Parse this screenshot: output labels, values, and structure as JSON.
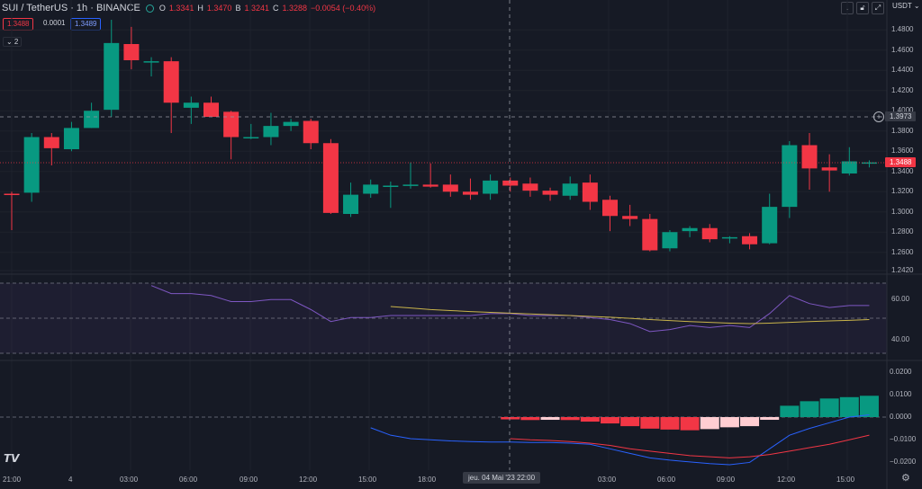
{
  "header": {
    "symbol": "SUI / TetherUS · 1h · BINANCE",
    "o_label": "O",
    "o_value": "1.3341",
    "h_label": "H",
    "h_value": "1.3470",
    "b_label": "B",
    "b_value": "1.3241",
    "c_label": "C",
    "c_value": "1.3288",
    "change": "−0.0054 (−0.40%)"
  },
  "toolbar": {
    "currency": "USDT",
    "icons": [
      "arrow-down-icon",
      "lock-icon",
      "expand-icon",
      "restore-icon"
    ]
  },
  "quotes": {
    "bid": "1.3488",
    "spread": "0.0001",
    "ask": "1.3489"
  },
  "indicators_collapsed": "⌄ 2",
  "price_axis": [
    "1.4800",
    "1.4600",
    "1.4400",
    "1.4200",
    "1.4000",
    "1.3800",
    "1.3600",
    "1.3400",
    "1.3200",
    "1.3000",
    "1.2800",
    "1.2600",
    "1.2420"
  ],
  "rsi_axis": [
    "60.00",
    "40.00"
  ],
  "macd_axis": [
    "0.0200",
    "0.0100",
    "0.0000",
    "−0.0100",
    "−0.0200"
  ],
  "time_axis": [
    "21:00",
    "4",
    "03:00",
    "06:00",
    "09:00",
    "12:00",
    "15:00",
    "18:00",
    "03:00",
    "06:00",
    "09:00",
    "12:00",
    "15:00"
  ],
  "crosshair": {
    "time": "jeu. 04 Mai '23   22:00",
    "price": "1.3973"
  },
  "last_price": "1.3488",
  "colors": {
    "up": "#089981",
    "down": "#f23645",
    "rsi": "#7e57c2",
    "rsi_ma": "#c9b44a",
    "macd": "#2962ff",
    "signal": "#f23645"
  },
  "chart_data": {
    "type": "candlestick",
    "ohlc": [
      [
        1.318,
        1.32,
        1.282,
        1.317
      ],
      [
        1.319,
        1.378,
        1.31,
        1.374
      ],
      [
        1.374,
        1.378,
        1.346,
        1.363
      ],
      [
        1.362,
        1.389,
        1.36,
        1.383
      ],
      [
        1.383,
        1.408,
        1.383,
        1.4
      ],
      [
        1.401,
        1.49,
        1.394,
        1.467
      ],
      [
        1.466,
        1.483,
        1.441,
        1.45
      ],
      [
        1.449,
        1.453,
        1.434,
        1.449
      ],
      [
        1.449,
        1.453,
        1.378,
        1.408
      ],
      [
        1.403,
        1.414,
        1.387,
        1.408
      ],
      [
        1.408,
        1.414,
        1.396,
        1.394
      ],
      [
        1.399,
        1.4,
        1.352,
        1.374
      ],
      [
        1.374,
        1.387,
        1.372,
        1.374
      ],
      [
        1.374,
        1.398,
        1.366,
        1.385
      ],
      [
        1.385,
        1.392,
        1.38,
        1.389
      ],
      [
        1.39,
        1.392,
        1.362,
        1.368
      ],
      [
        1.368,
        1.372,
        1.298,
        1.299
      ],
      [
        1.298,
        1.329,
        1.295,
        1.317
      ],
      [
        1.318,
        1.332,
        1.314,
        1.327
      ],
      [
        1.326,
        1.33,
        1.304,
        1.326
      ],
      [
        1.326,
        1.349,
        1.323,
        1.327
      ],
      [
        1.327,
        1.348,
        1.324,
        1.325
      ],
      [
        1.327,
        1.337,
        1.315,
        1.32
      ],
      [
        1.32,
        1.333,
        1.312,
        1.317
      ],
      [
        1.318,
        1.337,
        1.312,
        1.331
      ],
      [
        1.331,
        1.334,
        1.32,
        1.326
      ],
      [
        1.328,
        1.334,
        1.315,
        1.321
      ],
      [
        1.321,
        1.324,
        1.311,
        1.317
      ],
      [
        1.316,
        1.335,
        1.312,
        1.328
      ],
      [
        1.329,
        1.337,
        1.302,
        1.31
      ],
      [
        1.312,
        1.316,
        1.281,
        1.296
      ],
      [
        1.296,
        1.307,
        1.286,
        1.293
      ],
      [
        1.293,
        1.298,
        1.261,
        1.262
      ],
      [
        1.264,
        1.282,
        1.261,
        1.28
      ],
      [
        1.281,
        1.286,
        1.275,
        1.284
      ],
      [
        1.284,
        1.288,
        1.27,
        1.273
      ],
      [
        1.274,
        1.276,
        1.269,
        1.275
      ],
      [
        1.276,
        1.279,
        1.263,
        1.268
      ],
      [
        1.269,
        1.318,
        1.268,
        1.305
      ],
      [
        1.305,
        1.37,
        1.294,
        1.366
      ],
      [
        1.366,
        1.378,
        1.322,
        1.343
      ],
      [
        1.344,
        1.357,
        1.32,
        1.341
      ],
      [
        1.338,
        1.364,
        1.336,
        1.35
      ],
      [
        1.348,
        1.351,
        1.344,
        1.349
      ]
    ],
    "rsi": [
      null,
      null,
      null,
      null,
      null,
      null,
      null,
      67,
      63,
      63,
      62,
      59,
      59,
      60,
      60,
      55,
      49,
      51,
      51,
      52,
      52,
      52,
      52,
      52,
      53,
      53,
      52,
      52,
      52,
      51,
      50,
      48,
      44,
      45,
      47,
      46,
      47,
      46,
      53,
      62,
      58,
      56,
      57,
      57
    ],
    "rsi_ma": [
      null,
      null,
      null,
      null,
      null,
      null,
      null,
      null,
      null,
      null,
      null,
      null,
      null,
      null,
      null,
      null,
      null,
      null,
      null,
      56.5,
      55.8,
      55,
      54.5,
      54,
      53.6,
      53.2,
      52.8,
      52.4,
      52,
      51.6,
      51.2,
      50.6,
      50,
      49.5,
      49,
      48.6,
      48.2,
      48,
      48.2,
      48.6,
      49,
      49.3,
      49.6,
      50
    ],
    "macd_hist": [
      null,
      null,
      null,
      null,
      null,
      null,
      null,
      null,
      null,
      null,
      null,
      null,
      null,
      null,
      null,
      null,
      null,
      null,
      null,
      null,
      null,
      null,
      null,
      null,
      null,
      -0.001,
      -0.0013,
      -0.0012,
      -0.0013,
      -0.002,
      -0.0028,
      -0.004,
      -0.0051,
      -0.0055,
      -0.0058,
      -0.0053,
      -0.0045,
      -0.004,
      -0.0012,
      0.005,
      0.007,
      0.0082,
      0.0088,
      0.0094
    ],
    "macd_line": [
      null,
      null,
      null,
      null,
      null,
      null,
      null,
      null,
      null,
      null,
      null,
      null,
      null,
      null,
      null,
      null,
      null,
      null,
      -0.0047,
      -0.008,
      -0.0095,
      -0.01,
      -0.0105,
      -0.0108,
      -0.011,
      -0.011,
      -0.0112,
      -0.0112,
      -0.0115,
      -0.012,
      -0.014,
      -0.016,
      -0.018,
      -0.019,
      -0.0198,
      -0.0205,
      -0.021,
      -0.02,
      -0.014,
      -0.008,
      -0.005,
      -0.0025,
      0.0,
      0.001
    ],
    "signal_line": [
      null,
      null,
      null,
      null,
      null,
      null,
      null,
      null,
      null,
      null,
      null,
      null,
      null,
      null,
      null,
      null,
      null,
      null,
      null,
      null,
      null,
      null,
      null,
      null,
      null,
      -0.0095,
      -0.01,
      -0.0103,
      -0.0108,
      -0.0115,
      -0.0125,
      -0.014,
      -0.015,
      -0.016,
      -0.017,
      -0.0175,
      -0.018,
      -0.0175,
      -0.0165,
      -0.015,
      -0.0135,
      -0.012,
      -0.01,
      -0.008
    ],
    "ylim_price": [
      1.242,
      1.49
    ],
    "ylim_rsi": [
      30,
      70
    ],
    "ylim_macd": [
      -0.023,
      0.023
    ]
  }
}
